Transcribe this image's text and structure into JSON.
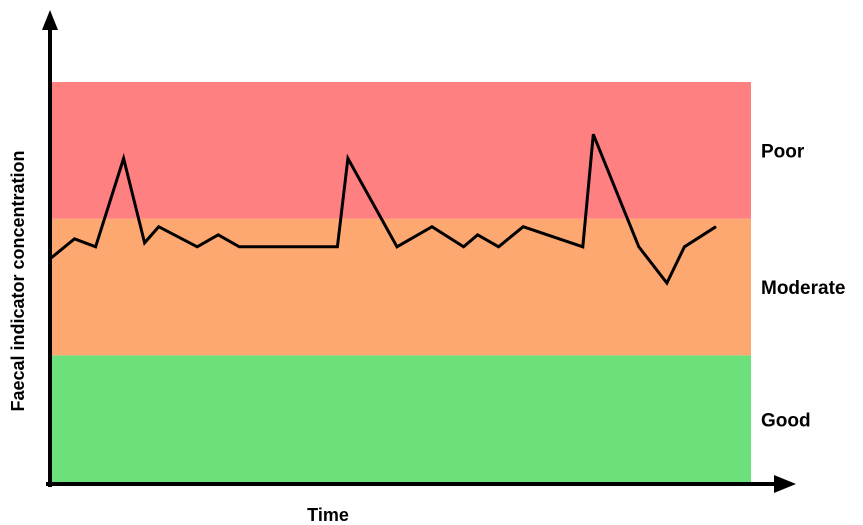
{
  "chart_data": {
    "type": "line",
    "title": "",
    "xlabel": "Time",
    "ylabel": "Faecal indicator concentration",
    "ylim": [
      0,
      100
    ],
    "grid": false,
    "bands": [
      {
        "label": "Good",
        "from": 0,
        "to": 32,
        "color": "#6be07b"
      },
      {
        "label": "Moderate",
        "from": 32,
        "to": 66,
        "color": "#fca870"
      },
      {
        "label": "Poor",
        "from": 66,
        "to": 100,
        "color": "#ff8080"
      }
    ],
    "series": [
      {
        "color": "#000000",
        "x": [
          0,
          3.5,
          6.5,
          10.5,
          13.5,
          15.5,
          21,
          24,
          27,
          41,
          42.5,
          49.5,
          54.5,
          59,
          61,
          64,
          67.5,
          76,
          77.5,
          84,
          88,
          90.5,
          95
        ],
        "y": [
          56,
          61,
          59,
          81,
          60,
          64,
          59,
          62,
          59,
          59,
          81,
          59,
          64,
          59,
          62,
          59,
          64,
          59,
          87,
          59,
          50,
          59,
          64
        ]
      }
    ]
  }
}
